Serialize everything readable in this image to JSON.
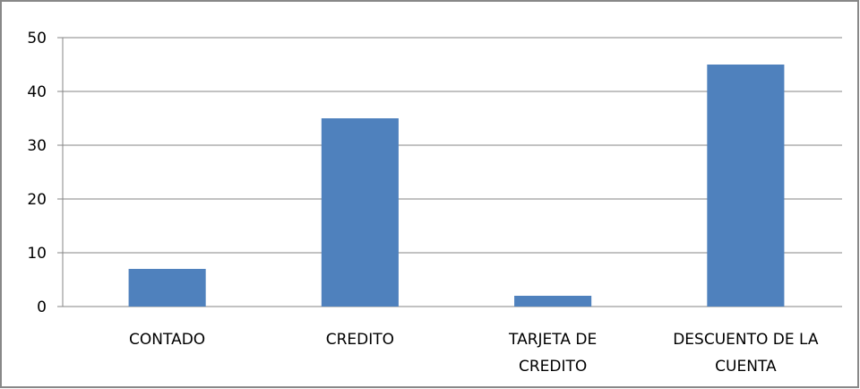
{
  "chart_data": {
    "type": "bar",
    "categories": [
      "CONTADO",
      "CREDITO",
      "TARJETA DE CREDITO",
      "DESCUENTO DE LA CUENTA"
    ],
    "values": [
      7,
      35,
      2,
      45
    ],
    "color": "#4f81bd",
    "ylim": [
      0,
      50
    ],
    "yticks": [
      0,
      10,
      20,
      30,
      40,
      50
    ],
    "grid": true
  }
}
